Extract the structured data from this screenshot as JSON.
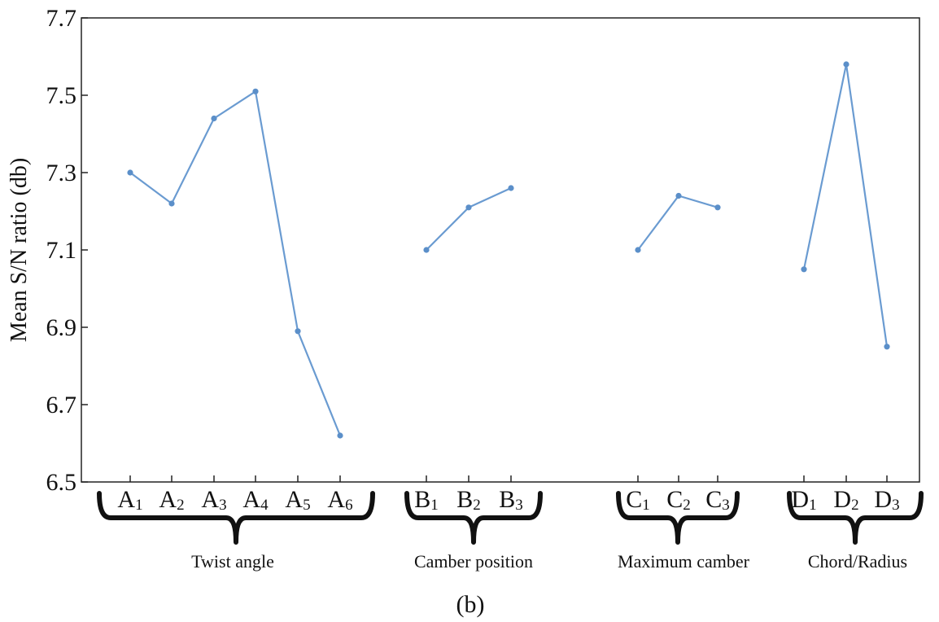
{
  "chart_data": {
    "type": "line",
    "ylabel": "Mean S/N ratio (db)",
    "caption": "(b)",
    "ylim": [
      6.5,
      7.7
    ],
    "yticks": [
      "6.5",
      "6.7",
      "6.9",
      "7.1",
      "7.3",
      "7.5",
      "7.7"
    ],
    "line_color": "#6a9bd1",
    "groups": [
      {
        "name": "Twist angle",
        "points": [
          {
            "base": "A",
            "sub": "1",
            "value": 7.3
          },
          {
            "base": "A",
            "sub": "2",
            "value": 7.22
          },
          {
            "base": "A",
            "sub": "3",
            "value": 7.44
          },
          {
            "base": "A",
            "sub": "4",
            "value": 7.51
          },
          {
            "base": "A",
            "sub": "5",
            "value": 6.89
          },
          {
            "base": "A",
            "sub": "6",
            "value": 6.62
          }
        ]
      },
      {
        "name": "Camber position",
        "points": [
          {
            "base": "B",
            "sub": "1",
            "value": 7.1
          },
          {
            "base": "B",
            "sub": "2",
            "value": 7.21
          },
          {
            "base": "B",
            "sub": "3",
            "value": 7.26
          }
        ]
      },
      {
        "name": "Maximum camber",
        "points": [
          {
            "base": "C",
            "sub": "1",
            "value": 7.1
          },
          {
            "base": "C",
            "sub": "2",
            "value": 7.24
          },
          {
            "base": "C",
            "sub": "3",
            "value": 7.21
          }
        ]
      },
      {
        "name": "Chord/Radius",
        "points": [
          {
            "base": "D",
            "sub": "1",
            "value": 7.05
          },
          {
            "base": "D",
            "sub": "2",
            "value": 7.58
          },
          {
            "base": "D",
            "sub": "3",
            "value": 6.85
          }
        ]
      }
    ]
  }
}
